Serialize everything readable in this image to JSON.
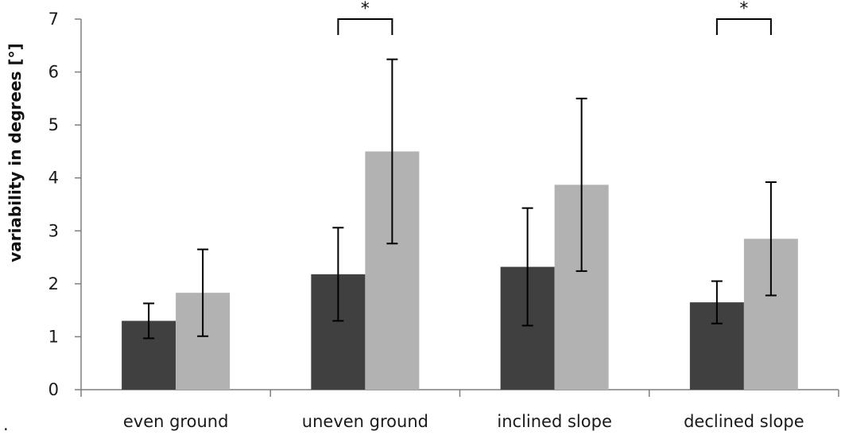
{
  "chart_data": {
    "type": "bar",
    "title": "",
    "xlabel": "",
    "ylabel": "variability in degrees [°]",
    "ylim": [
      0,
      7
    ],
    "yticks": [
      "0",
      "1",
      "2",
      "3",
      "4",
      "5",
      "6",
      "7"
    ],
    "categories": [
      "even ground",
      "uneven ground",
      "inclined slope",
      "declined slope"
    ],
    "series": [
      {
        "color": "#404040",
        "values": [
          1.3,
          2.18,
          2.32,
          1.65
        ],
        "error": [
          0.33,
          0.88,
          1.11,
          0.4
        ]
      },
      {
        "color": "#b2b2b2",
        "values": [
          1.83,
          4.5,
          3.87,
          2.85
        ],
        "error": [
          0.82,
          1.74,
          1.63,
          1.07
        ]
      }
    ],
    "significance": [
      {
        "category": "uneven ground",
        "label": "*"
      },
      {
        "category": "declined slope",
        "label": "*"
      }
    ],
    "grid": false,
    "legend": "none",
    "stray_mark": "."
  }
}
